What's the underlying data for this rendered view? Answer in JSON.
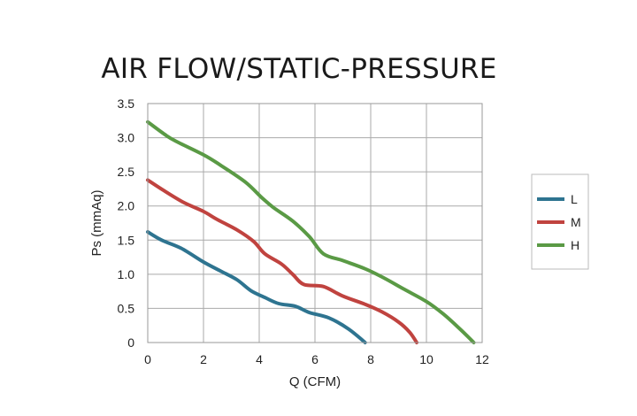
{
  "chart_data": {
    "type": "line",
    "title": "AIR FLOW/STATIC-PRESSURE",
    "xlabel": "Q (CFM)",
    "ylabel": "Ps (mmAq)",
    "xlim": [
      0,
      12
    ],
    "ylim": [
      0,
      3.5
    ],
    "x_ticks": [
      0,
      2,
      4,
      6,
      8,
      10,
      12
    ],
    "x_tick_labels": [
      "0",
      "2",
      "4",
      "6",
      "8",
      "10",
      "12"
    ],
    "y_ticks": [
      0,
      0.5,
      1.0,
      1.5,
      2.0,
      2.5,
      3.0,
      3.5
    ],
    "y_tick_labels": [
      "0",
      "0.5",
      "1.0",
      "1.5",
      "2.0",
      "2.5",
      "3.0",
      "3.5"
    ],
    "grid": true,
    "legend_position": "right",
    "series": [
      {
        "name": "L",
        "color": "#2e7490",
        "points": [
          [
            0,
            1.62
          ],
          [
            0.5,
            1.5
          ],
          [
            1.2,
            1.38
          ],
          [
            2.0,
            1.18
          ],
          [
            2.6,
            1.05
          ],
          [
            3.2,
            0.92
          ],
          [
            3.7,
            0.76
          ],
          [
            4.2,
            0.66
          ],
          [
            4.7,
            0.57
          ],
          [
            5.3,
            0.53
          ],
          [
            5.8,
            0.44
          ],
          [
            6.5,
            0.36
          ],
          [
            7.2,
            0.2
          ],
          [
            7.8,
            0.0
          ]
        ]
      },
      {
        "name": "M",
        "color": "#c0433f",
        "points": [
          [
            0,
            2.38
          ],
          [
            0.6,
            2.22
          ],
          [
            1.3,
            2.05
          ],
          [
            2.0,
            1.92
          ],
          [
            2.5,
            1.8
          ],
          [
            3.2,
            1.65
          ],
          [
            3.8,
            1.48
          ],
          [
            4.2,
            1.3
          ],
          [
            4.8,
            1.15
          ],
          [
            5.2,
            1.0
          ],
          [
            5.6,
            0.85
          ],
          [
            6.3,
            0.82
          ],
          [
            7.0,
            0.68
          ],
          [
            7.8,
            0.56
          ],
          [
            8.4,
            0.45
          ],
          [
            9.0,
            0.3
          ],
          [
            9.4,
            0.15
          ],
          [
            9.65,
            0.0
          ]
        ]
      },
      {
        "name": "H",
        "color": "#5a9a45",
        "points": [
          [
            0,
            3.23
          ],
          [
            0.6,
            3.05
          ],
          [
            1.0,
            2.95
          ],
          [
            2.0,
            2.75
          ],
          [
            2.6,
            2.6
          ],
          [
            3.5,
            2.35
          ],
          [
            4.1,
            2.12
          ],
          [
            4.5,
            1.98
          ],
          [
            5.2,
            1.78
          ],
          [
            5.8,
            1.55
          ],
          [
            6.3,
            1.3
          ],
          [
            7.0,
            1.2
          ],
          [
            7.8,
            1.08
          ],
          [
            8.5,
            0.94
          ],
          [
            9.2,
            0.78
          ],
          [
            10.0,
            0.6
          ],
          [
            10.6,
            0.42
          ],
          [
            11.2,
            0.2
          ],
          [
            11.7,
            0.0
          ]
        ]
      }
    ]
  }
}
